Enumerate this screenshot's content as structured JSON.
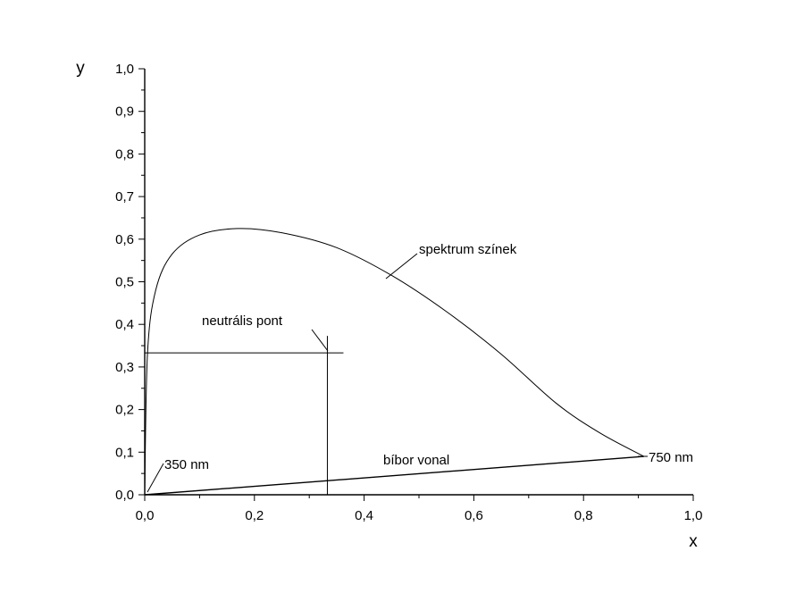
{
  "chart_data": {
    "type": "line",
    "title": "",
    "xlabel": "x",
    "ylabel": "y",
    "xlim": [
      0.0,
      1.0
    ],
    "ylim": [
      0.0,
      1.0
    ],
    "x_ticks": [
      "0,0",
      "0,2",
      "0,4",
      "0,6",
      "0,8",
      "1,0"
    ],
    "y_ticks": [
      "0,0",
      "0,1",
      "0,2",
      "0,3",
      "0,4",
      "0,5",
      "0,6",
      "0,7",
      "0,8",
      "0,9",
      "1,0"
    ],
    "grid": false,
    "series": [
      {
        "name": "spektrum színek",
        "x": [
          0.0,
          0.005,
          0.02,
          0.05,
          0.1,
          0.17,
          0.25,
          0.35,
          0.45,
          0.55,
          0.65,
          0.75,
          0.83,
          0.91
        ],
        "y": [
          0.0,
          0.33,
          0.48,
          0.565,
          0.61,
          0.625,
          0.615,
          0.58,
          0.515,
          0.43,
          0.33,
          0.215,
          0.145,
          0.09
        ]
      },
      {
        "name": "bíbor vonal",
        "x": [
          0.0,
          0.91
        ],
        "y": [
          0.0,
          0.09
        ]
      }
    ],
    "neutral_point": {
      "x": 0.333,
      "y": 0.333
    },
    "annotations": {
      "spectrum": "spektrum színek",
      "neutral": "neutrális pont",
      "purple_line": "bíbor vonal",
      "start": "350 nm",
      "end": "750 nm"
    }
  }
}
